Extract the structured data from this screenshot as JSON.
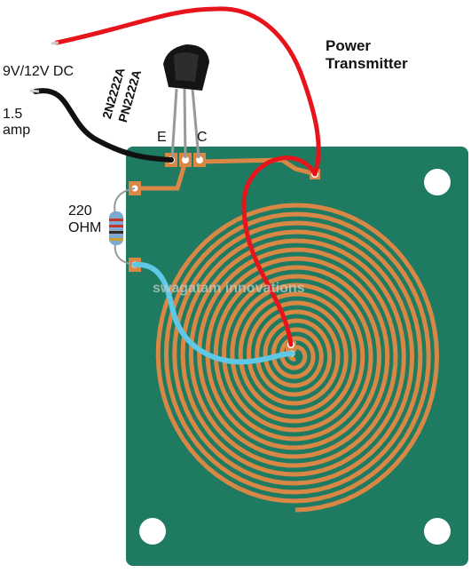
{
  "title": {
    "line1": "Power",
    "line2": "Transmitter"
  },
  "supply": {
    "voltage": "9V/12V DC",
    "current_line1": "1.5",
    "current_line2": "amp"
  },
  "transistor": {
    "part1": "2N2222A",
    "part2": "PN2222A",
    "pin_e": "E",
    "pin_c": "C"
  },
  "resistor": {
    "value": "220",
    "unit": "OHM"
  },
  "watermark": "swagatam innovations",
  "colors": {
    "board": "#1f7a62",
    "copper": "#d98745",
    "red_wire": "#e8141b",
    "black_wire": "#111111",
    "blue_wire": "#5ec8e6",
    "pad": "#ffffff"
  },
  "icons": [
    "transistor-icon",
    "resistor-icon",
    "spiral-coil-icon",
    "mounting-hole-icon"
  ]
}
